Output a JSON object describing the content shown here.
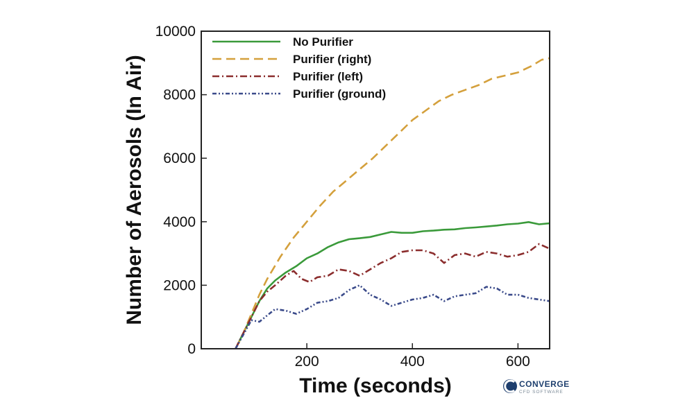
{
  "chart_data": {
    "type": "line",
    "xlabel": "Time (seconds)",
    "ylabel": "Number of Aerosols (In Air)",
    "xlim": [
      0,
      660
    ],
    "ylim": [
      0,
      10000
    ],
    "x_ticks": [
      200,
      400,
      600
    ],
    "y_ticks": [
      0,
      2000,
      4000,
      6000,
      8000,
      10000
    ],
    "grid": false,
    "legend_position": "top-left",
    "series": [
      {
        "name": "No Purifier",
        "color": "#3a9a3a",
        "style": "solid",
        "points": [
          [
            65,
            0
          ],
          [
            80,
            500
          ],
          [
            95,
            1000
          ],
          [
            110,
            1500
          ],
          [
            125,
            1900
          ],
          [
            140,
            2150
          ],
          [
            160,
            2400
          ],
          [
            180,
            2600
          ],
          [
            200,
            2850
          ],
          [
            220,
            3000
          ],
          [
            240,
            3200
          ],
          [
            260,
            3350
          ],
          [
            280,
            3450
          ],
          [
            300,
            3480
          ],
          [
            320,
            3520
          ],
          [
            340,
            3600
          ],
          [
            360,
            3680
          ],
          [
            380,
            3650
          ],
          [
            400,
            3650
          ],
          [
            420,
            3700
          ],
          [
            440,
            3720
          ],
          [
            460,
            3750
          ],
          [
            480,
            3760
          ],
          [
            500,
            3800
          ],
          [
            520,
            3820
          ],
          [
            540,
            3850
          ],
          [
            560,
            3880
          ],
          [
            580,
            3920
          ],
          [
            600,
            3940
          ],
          [
            620,
            3990
          ],
          [
            640,
            3920
          ],
          [
            660,
            3950
          ]
        ]
      },
      {
        "name": "Purifier (right)",
        "color": "#d4a03c",
        "style": "dashed",
        "points": [
          [
            65,
            0
          ],
          [
            80,
            500
          ],
          [
            95,
            1100
          ],
          [
            110,
            1700
          ],
          [
            125,
            2200
          ],
          [
            150,
            2900
          ],
          [
            175,
            3500
          ],
          [
            200,
            4000
          ],
          [
            225,
            4500
          ],
          [
            250,
            4950
          ],
          [
            275,
            5300
          ],
          [
            300,
            5650
          ],
          [
            325,
            6000
          ],
          [
            350,
            6400
          ],
          [
            375,
            6800
          ],
          [
            400,
            7200
          ],
          [
            425,
            7500
          ],
          [
            450,
            7800
          ],
          [
            475,
            8000
          ],
          [
            500,
            8150
          ],
          [
            525,
            8300
          ],
          [
            550,
            8500
          ],
          [
            575,
            8600
          ],
          [
            600,
            8700
          ],
          [
            625,
            8900
          ],
          [
            645,
            9100
          ],
          [
            660,
            9150
          ]
        ]
      },
      {
        "name": "Purifier (left)",
        "color": "#8b2d2d",
        "style": "dashdot",
        "points": [
          [
            65,
            0
          ],
          [
            80,
            500
          ],
          [
            95,
            1000
          ],
          [
            110,
            1500
          ],
          [
            125,
            1800
          ],
          [
            140,
            2000
          ],
          [
            160,
            2300
          ],
          [
            175,
            2450
          ],
          [
            190,
            2200
          ],
          [
            205,
            2100
          ],
          [
            220,
            2250
          ],
          [
            240,
            2300
          ],
          [
            260,
            2500
          ],
          [
            280,
            2450
          ],
          [
            300,
            2300
          ],
          [
            320,
            2500
          ],
          [
            340,
            2700
          ],
          [
            360,
            2850
          ],
          [
            380,
            3050
          ],
          [
            400,
            3100
          ],
          [
            420,
            3100
          ],
          [
            440,
            3000
          ],
          [
            460,
            2700
          ],
          [
            480,
            2950
          ],
          [
            500,
            3000
          ],
          [
            520,
            2900
          ],
          [
            540,
            3050
          ],
          [
            560,
            3000
          ],
          [
            580,
            2900
          ],
          [
            600,
            2950
          ],
          [
            620,
            3050
          ],
          [
            640,
            3300
          ],
          [
            660,
            3150
          ]
        ]
      },
      {
        "name": "Purifier (ground)",
        "color": "#3a4a8a",
        "style": "dashdotdot",
        "points": [
          [
            65,
            0
          ],
          [
            80,
            450
          ],
          [
            95,
            900
          ],
          [
            110,
            850
          ],
          [
            125,
            1050
          ],
          [
            140,
            1250
          ],
          [
            160,
            1200
          ],
          [
            180,
            1100
          ],
          [
            200,
            1250
          ],
          [
            220,
            1450
          ],
          [
            240,
            1500
          ],
          [
            260,
            1600
          ],
          [
            280,
            1850
          ],
          [
            300,
            2000
          ],
          [
            320,
            1700
          ],
          [
            340,
            1550
          ],
          [
            360,
            1350
          ],
          [
            380,
            1450
          ],
          [
            400,
            1550
          ],
          [
            420,
            1600
          ],
          [
            440,
            1700
          ],
          [
            460,
            1500
          ],
          [
            480,
            1650
          ],
          [
            500,
            1700
          ],
          [
            520,
            1750
          ],
          [
            540,
            1950
          ],
          [
            560,
            1900
          ],
          [
            580,
            1700
          ],
          [
            600,
            1700
          ],
          [
            620,
            1600
          ],
          [
            640,
            1550
          ],
          [
            660,
            1500
          ]
        ]
      }
    ]
  },
  "logo": {
    "name": "CONVERGE",
    "subtitle": "CFD SOFTWARE",
    "color": "#1e3f6e"
  }
}
